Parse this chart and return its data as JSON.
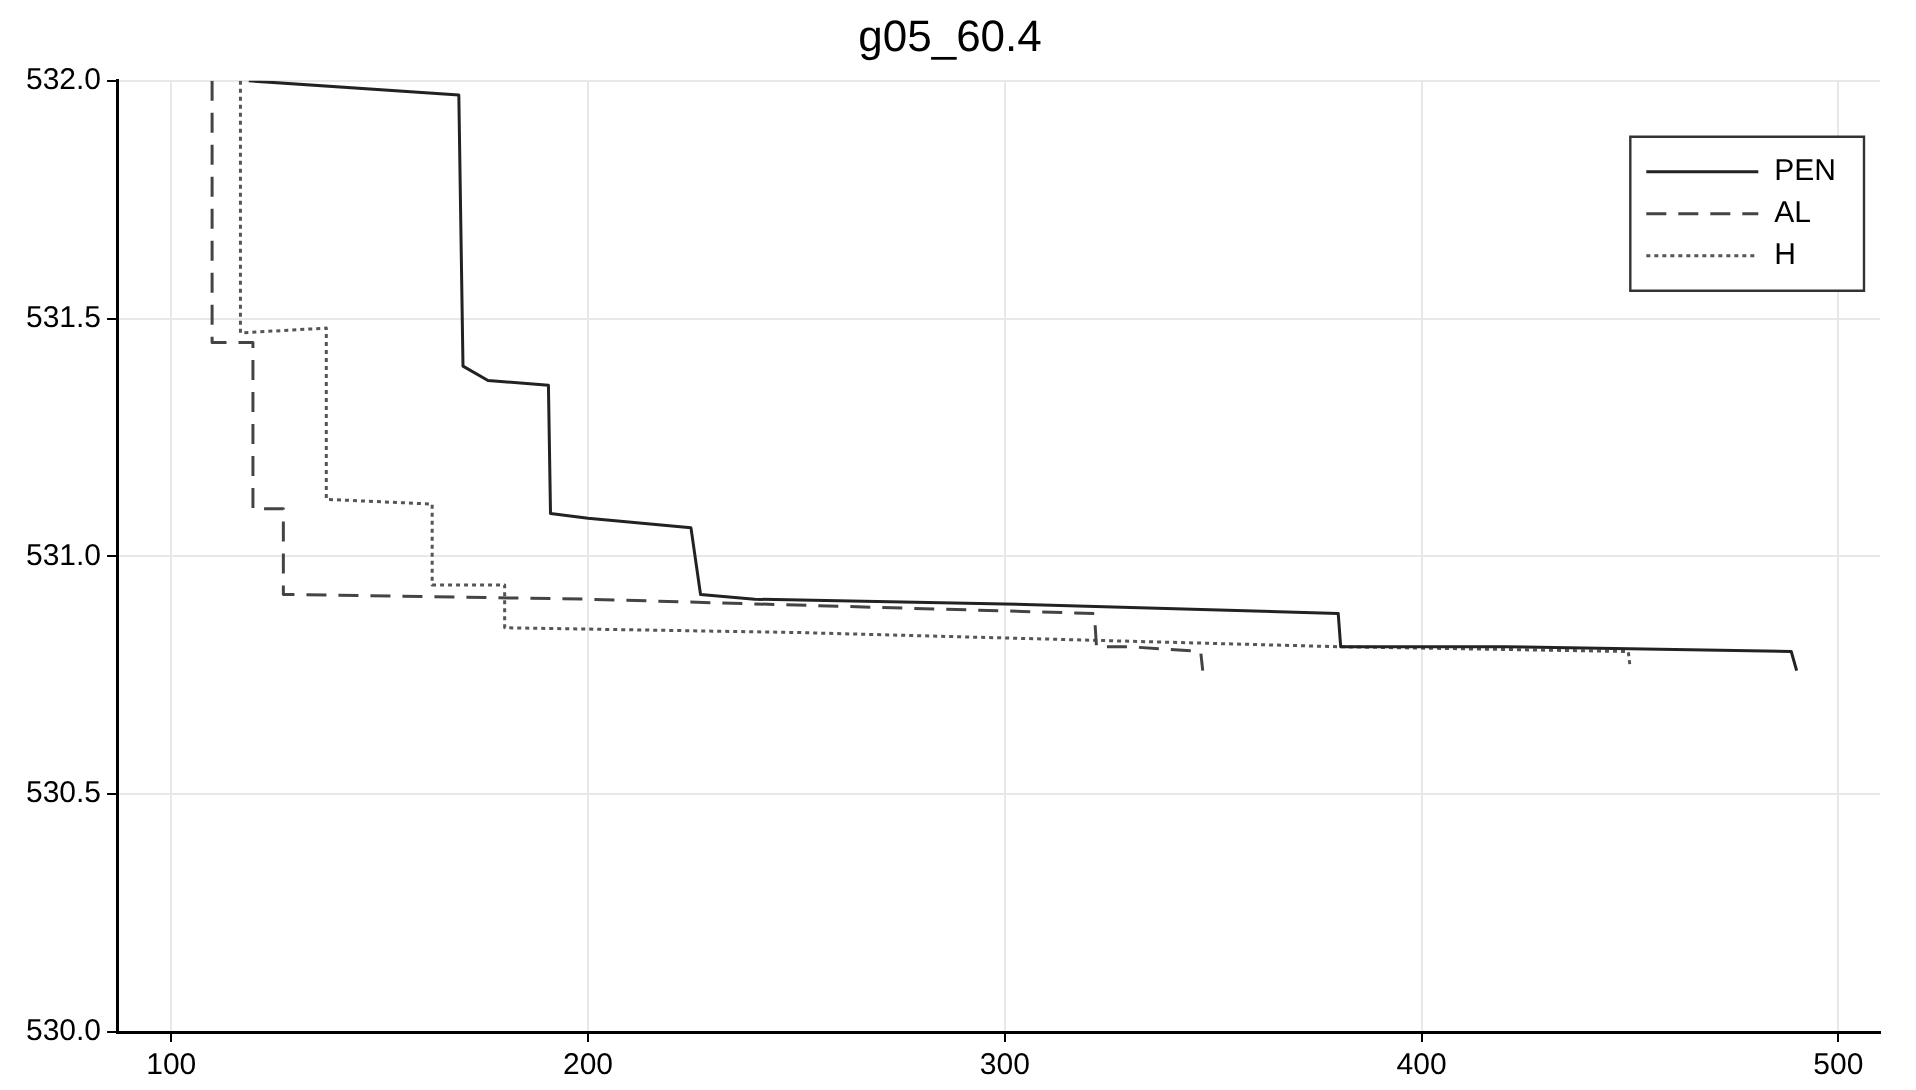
{
  "chart_data": {
    "type": "line",
    "title": "g05_60.4",
    "xlim": [
      87,
      510
    ],
    "xticks": [
      100,
      200,
      300,
      400,
      500
    ],
    "ylim": [
      530,
      532
    ],
    "yticks": [
      {
        "value": 530,
        "label": "530.0"
      },
      530.5,
      {
        "value": 531,
        "label": "531.0"
      },
      531.5,
      {
        "value": 532,
        "label": "532.0"
      }
    ],
    "grid": true,
    "legend": "top right",
    "marker": "none",
    "series": [
      {
        "name": "PEN",
        "color": "#222222",
        "line_style": "solid",
        "x": [
          118.6,
          169,
          170,
          176,
          190.5,
          191,
          200,
          224.7,
          227,
          240,
          300,
          380,
          380.6,
          420,
          488.7,
          490
        ],
        "values": [
          532.0,
          531.97,
          531.4,
          531.37,
          531.36,
          531.09,
          531.08,
          531.06,
          530.92,
          530.91,
          530.9,
          530.88,
          530.81,
          530.81,
          530.8,
          530.76
        ]
      },
      {
        "name": "AL",
        "color": "#444444",
        "line_style": "dashed",
        "x": [
          109.8,
          109.8,
          114.7,
          119.6,
          119.6,
          126.9,
          126.9,
          200,
          321.5,
          322,
          330,
          347,
          347.5
        ],
        "values": [
          532.0,
          531.45,
          531.45,
          531.45,
          531.1,
          531.1,
          530.92,
          530.91,
          530.88,
          530.81,
          530.81,
          530.8,
          530.76
        ]
      },
      {
        "name": "H",
        "color": "#555555",
        "line_style": "dotted",
        "x": [
          116.6,
          116.6,
          137.2,
          137.2,
          162.6,
          162.6,
          180,
          180,
          250,
          380.6,
          449.6,
          450
        ],
        "values": [
          532.0,
          531.47,
          531.48,
          531.12,
          531.11,
          530.94,
          530.94,
          530.85,
          530.84,
          530.81,
          530.8,
          530.77
        ]
      }
    ]
  }
}
